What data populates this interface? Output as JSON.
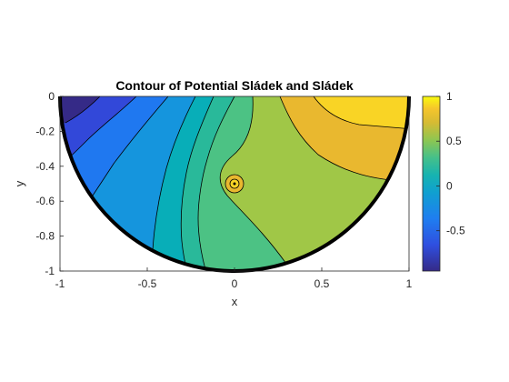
{
  "chart_data": {
    "type": "contour",
    "title": "Contour of Potential Sládek and Sládek",
    "xlabel": "x",
    "ylabel": "y",
    "xlim": [
      -1,
      1
    ],
    "ylim": [
      -1,
      0
    ],
    "x_ticks": [
      "-1",
      "-0.5",
      "0",
      "0.5",
      "1"
    ],
    "x_tick_values": [
      -1,
      -0.5,
      0,
      0.5,
      1
    ],
    "y_ticks": [
      "0",
      "-0.2",
      "-0.4",
      "-0.6",
      "-0.8",
      "-1"
    ],
    "y_tick_values": [
      0,
      -0.2,
      -0.4,
      -0.6,
      -0.8,
      -1
    ],
    "domain": "lower half unit disk",
    "singular_point": {
      "x": 0,
      "y": -0.5
    },
    "colorbar": {
      "colormap": "parula",
      "range": [
        -0.95,
        1
      ],
      "ticks": [
        "1",
        "0.5",
        "0",
        "-0.5"
      ],
      "tick_values": [
        1,
        0.5,
        0,
        -0.5
      ]
    },
    "level_colors": [
      "#352a87",
      "#3248d9",
      "#1f78f0",
      "#1595dd",
      "#08aeb8",
      "#29b99a",
      "#4cc284",
      "#a0c747",
      "#e9b82f",
      "#f9d425"
    ]
  }
}
